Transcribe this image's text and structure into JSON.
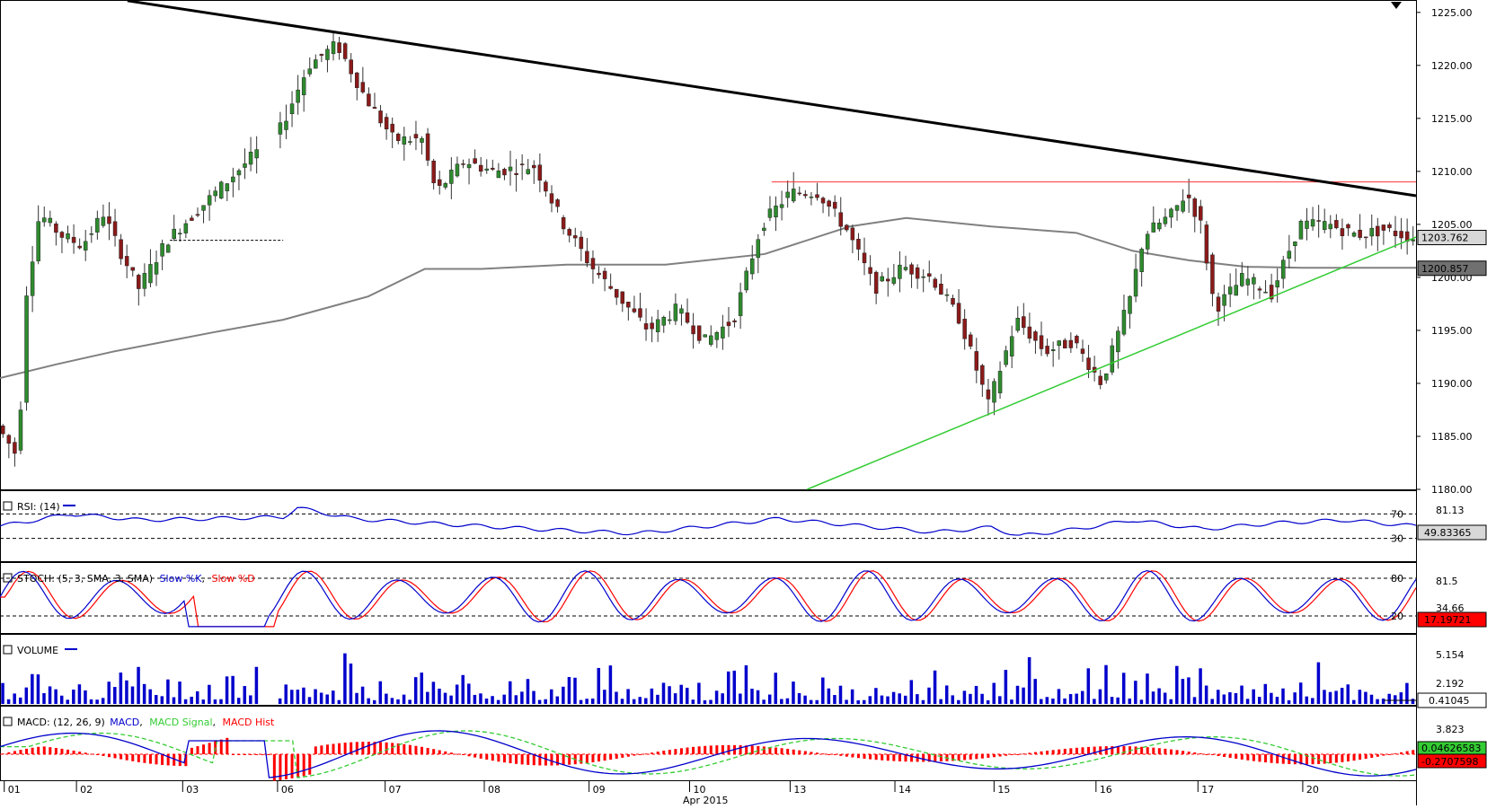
{
  "chart_data": [
    {
      "type": "candlestick",
      "panel": "price",
      "ylim": [
        1180,
        1226
      ],
      "y_ticks": [
        "1225.00",
        "1220.00",
        "1215.00",
        "1210.00",
        "1205.00",
        "1200.00",
        "1195.00",
        "1190.00",
        "1185.00",
        "1180.00"
      ],
      "last_price_label": "1203.762",
      "ma_label": "1200.857",
      "resistance_level": 1209.0,
      "trendlines": [
        {
          "name": "descending",
          "color": "#000000",
          "from": [
            0.09,
            1226.1
          ],
          "to": [
            1.0,
            1207.7
          ]
        },
        {
          "name": "ascending",
          "color": "#33cc33",
          "from": [
            0.57,
            1180.0
          ],
          "to": [
            1.0,
            1203.8
          ]
        }
      ],
      "ma_points": [
        [
          0,
          1190.5
        ],
        [
          0.04,
          1191.8
        ],
        [
          0.08,
          1193.0
        ],
        [
          0.15,
          1194.8
        ],
        [
          0.2,
          1196.0
        ],
        [
          0.26,
          1198.2
        ],
        [
          0.3,
          1200.8
        ],
        [
          0.34,
          1200.8
        ],
        [
          0.4,
          1201.2
        ],
        [
          0.47,
          1201.2
        ],
        [
          0.54,
          1202.2
        ],
        [
          0.6,
          1204.8
        ],
        [
          0.64,
          1205.6
        ],
        [
          0.7,
          1204.8
        ],
        [
          0.76,
          1204.2
        ],
        [
          0.8,
          1202.5
        ],
        [
          0.84,
          1201.6
        ],
        [
          0.88,
          1201.0
        ],
        [
          0.92,
          1200.9
        ],
        [
          1.0,
          1200.9
        ]
      ],
      "close_points": [
        [
          0.0,
          1186
        ],
        [
          0.015,
          1183
        ],
        [
          0.02,
          1198
        ],
        [
          0.03,
          1206
        ],
        [
          0.045,
          1204
        ],
        [
          0.06,
          1203
        ],
        [
          0.075,
          1206
        ],
        [
          0.085,
          1203
        ],
        [
          0.1,
          1199
        ],
        [
          0.12,
          1203.5
        ],
        [
          0.2,
          1214
        ],
        [
          0.22,
          1220
        ],
        [
          0.24,
          1222
        ],
        [
          0.26,
          1217
        ],
        [
          0.28,
          1213
        ],
        [
          0.3,
          1213
        ],
        [
          0.31,
          1208
        ],
        [
          0.33,
          1211
        ],
        [
          0.35,
          1210
        ],
        [
          0.38,
          1210.5
        ],
        [
          0.4,
          1205
        ],
        [
          0.42,
          1201
        ],
        [
          0.44,
          1198
        ],
        [
          0.46,
          1195
        ],
        [
          0.48,
          1197
        ],
        [
          0.5,
          1194
        ],
        [
          0.52,
          1196
        ],
        [
          0.54,
          1205
        ],
        [
          0.56,
          1208
        ],
        [
          0.58,
          1208
        ],
        [
          0.6,
          1204.5
        ],
        [
          0.62,
          1199
        ],
        [
          0.64,
          1201
        ],
        [
          0.66,
          1200
        ],
        [
          0.68,
          1196
        ],
        [
          0.7,
          1188
        ],
        [
          0.72,
          1196
        ],
        [
          0.74,
          1193
        ],
        [
          0.76,
          1194
        ],
        [
          0.78,
          1190
        ],
        [
          0.8,
          1198
        ],
        [
          0.81,
          1204
        ],
        [
          0.83,
          1206
        ],
        [
          0.84,
          1208
        ],
        [
          0.85,
          1205
        ],
        [
          0.86,
          1197
        ],
        [
          0.88,
          1200
        ],
        [
          0.9,
          1198.5
        ],
        [
          0.92,
          1205
        ],
        [
          0.94,
          1205
        ],
        [
          0.96,
          1204
        ],
        [
          0.98,
          1204.5
        ],
        [
          1.0,
          1203.7
        ]
      ],
      "x_ticks": [
        "01",
        "02",
        "03",
        "06",
        "07",
        "08",
        "09",
        "10",
        "13",
        "14",
        "15",
        "16",
        "17",
        "20"
      ],
      "xlabel": "Apr 2015"
    },
    {
      "type": "line",
      "panel": "rsi",
      "title": "RSI: (14)",
      "ylim": [
        0,
        100
      ],
      "levels": [
        70,
        30
      ],
      "y_tick_labels": [
        "81.13"
      ],
      "last_value_label": "49.83365",
      "series": [
        {
          "color": "#0000cc",
          "points": [
            [
              0,
              50
            ],
            [
              0.05,
              70
            ],
            [
              0.1,
              60
            ],
            [
              0.2,
              65
            ],
            [
              0.21,
              80
            ],
            [
              0.25,
              62
            ],
            [
              0.3,
              55
            ],
            [
              0.38,
              45
            ],
            [
              0.45,
              38
            ],
            [
              0.55,
              62
            ],
            [
              0.6,
              52
            ],
            [
              0.66,
              40
            ],
            [
              0.7,
              48
            ],
            [
              0.72,
              34
            ],
            [
              0.76,
              45
            ],
            [
              0.8,
              60
            ],
            [
              0.85,
              45
            ],
            [
              0.9,
              55
            ],
            [
              0.95,
              60
            ],
            [
              1.0,
              50
            ]
          ]
        }
      ]
    },
    {
      "type": "line",
      "panel": "stoch",
      "title": "STOCH: (5, 3, SMA, 3, SMA)",
      "series": [
        {
          "name": "Slow %K",
          "color": "#0000cc"
        },
        {
          "name": "Slow %D",
          "color": "#ff0000"
        }
      ],
      "ylim": [
        0,
        100
      ],
      "levels": [
        80,
        20
      ],
      "y_tick_labels": [
        "81.5",
        "34.66"
      ],
      "last_value_label": "17.19721"
    },
    {
      "type": "bar",
      "panel": "volume",
      "title": "VOLUME",
      "y_tick_labels": [
        "5.154",
        "2.192"
      ],
      "last_value_label": "0.41045"
    },
    {
      "type": "line",
      "panel": "macd",
      "title": "MACD: (12, 26, 9)",
      "series": [
        {
          "name": "MACD",
          "color": "#0000cc"
        },
        {
          "name": "MACD Signal",
          "color": "#33cc33"
        },
        {
          "name": "MACD Hist",
          "color": "#ff0000"
        }
      ],
      "y_tick_labels": [
        "3.823"
      ],
      "last_value_labels": [
        "0.04626583",
        "-0.2707598"
      ]
    }
  ]
}
